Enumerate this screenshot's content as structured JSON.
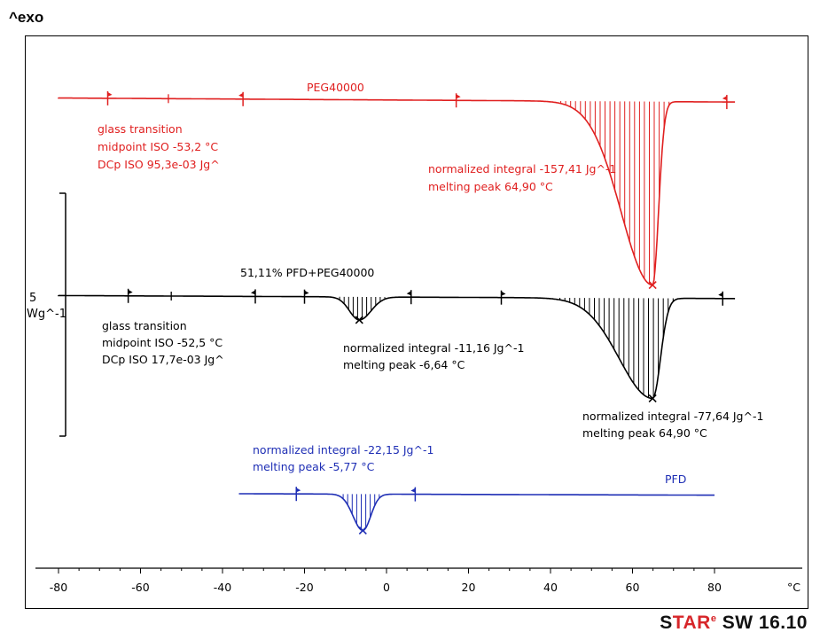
{
  "header": {
    "exo_label": "^exo"
  },
  "brand": {
    "prefix": "S",
    "red": "TAR",
    "sup": "e",
    "suffix": " SW 16.10"
  },
  "chart_data": {
    "type": "line",
    "xlabel": "°C",
    "xlim": [
      -80,
      85
    ],
    "xticks": [
      -80,
      -60,
      -40,
      -20,
      0,
      20,
      40,
      60,
      80
    ],
    "scale_bar": {
      "value": "5",
      "unit": "Wg^-1"
    },
    "series": [
      {
        "name": "PEG40000",
        "color": "#e02020",
        "baseline_y": 110,
        "x_range": [
          -100,
          85
        ],
        "peaks": [
          {
            "x": 64.9,
            "depth": 207,
            "left_width": 16,
            "right_width": 3,
            "from": 17,
            "to": 83
          }
        ],
        "limit_markers": [
          -68,
          -35,
          17,
          83
        ],
        "midpoint_markers": [
          -53.2
        ],
        "annotations": [
          {
            "lines": [
              "glass transition",
              "midpoint ISO     -53,2 °C",
              "DCp ISO          95,3e-03 Jg^"
            ]
          },
          {
            "lines": [
              "normalized integral -157,41 Jg^-1",
              "melting peak           64,90 °C"
            ]
          }
        ]
      },
      {
        "name": "51,11% PFD+PEG40000",
        "color": "#000000",
        "baseline_y": 333,
        "x_range": [
          -100,
          85
        ],
        "peaks": [
          {
            "x": -6.64,
            "depth": 26,
            "left_width": 5,
            "right_width": 6,
            "from": -20,
            "to": 6
          },
          {
            "x": 64.9,
            "depth": 113,
            "left_width": 17,
            "right_width": 4,
            "from": 28,
            "to": 82
          }
        ],
        "limit_markers": [
          -63,
          -32,
          -20,
          6,
          28,
          82
        ],
        "midpoint_markers": [
          -52.5
        ],
        "annotations": [
          {
            "lines": [
              "glass transition",
              "midpoint ISO     -52,5 °C",
              "DCp ISO          17,7e-03 Jg^"
            ]
          },
          {
            "lines": [
              "normalized integral -11,16 Jg^-1",
              "melting peak          -6,64 °C"
            ]
          },
          {
            "lines": [
              "normalized integral -77,64 Jg^-1",
              "melting peak            64,90 °C"
            ]
          }
        ]
      },
      {
        "name": "PFD",
        "color": "#1f2fb5",
        "baseline_y": 557,
        "x_range": [
          -36,
          80
        ],
        "peaks": [
          {
            "x": -5.77,
            "depth": 41,
            "left_width": 5,
            "right_width": 4,
            "from": -22,
            "to": 7
          }
        ],
        "limit_markers": [
          -22,
          7
        ],
        "midpoint_markers": [],
        "annotations": [
          {
            "lines": [
              "normalized integral -22,15 Jg^-1",
              "melting peak          -5,77 °C"
            ]
          }
        ]
      }
    ]
  }
}
